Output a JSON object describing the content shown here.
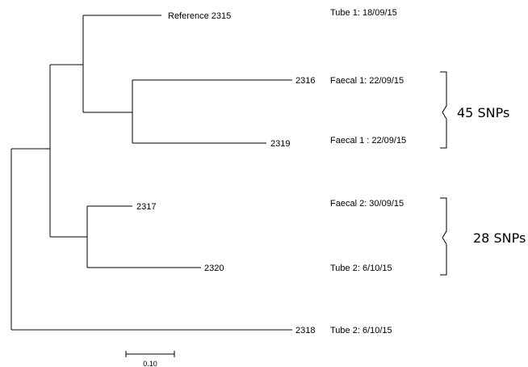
{
  "tree": {
    "leaves": [
      {
        "id": "ref2315",
        "label": "Reference 2315"
      },
      {
        "id": "n2316",
        "label": "2316"
      },
      {
        "id": "n2319",
        "label": "2319"
      },
      {
        "id": "n2317",
        "label": "2317"
      },
      {
        "id": "n2320",
        "label": "2320"
      },
      {
        "id": "n2318",
        "label": "2318"
      }
    ]
  },
  "samples": [
    {
      "leaf": "ref2315",
      "label": "Tube 1: 18/09/15"
    },
    {
      "leaf": "n2316",
      "label": "Faecal 1: 22/09/15"
    },
    {
      "leaf": "n2319",
      "label": "Faecal 1 : 22/09/15"
    },
    {
      "leaf": "n2317",
      "label": "Faecal 2: 30/09/15"
    },
    {
      "leaf": "n2320",
      "label": "Tube 2: 6/10/15"
    },
    {
      "leaf": "n2318",
      "label": "Tube 2: 6/10/15"
    }
  ],
  "brackets": [
    {
      "label": "45 SNPs",
      "members": [
        "n2316",
        "n2319"
      ]
    },
    {
      "label": "28 SNPs",
      "members": [
        "n2317",
        "n2320"
      ]
    }
  ],
  "scale_bar": {
    "label": "0.10",
    "value": 0.1
  }
}
